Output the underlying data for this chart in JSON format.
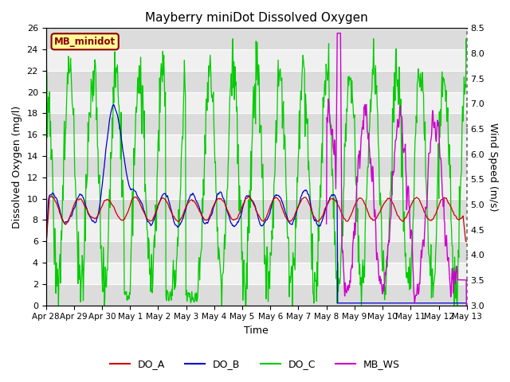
{
  "title": "Mayberry miniDot Dissolved Oxygen",
  "xlabel": "Time",
  "ylabel_left": "Dissolved Oxygen (mg/l)",
  "ylabel_right": "Wind Speed (m/s)",
  "ylim_left": [
    0,
    26
  ],
  "ylim_right": [
    3.0,
    8.5
  ],
  "yticks_left": [
    0,
    2,
    4,
    6,
    8,
    10,
    12,
    14,
    16,
    18,
    20,
    22,
    24,
    26
  ],
  "yticks_right": [
    3.0,
    3.5,
    4.0,
    4.5,
    5.0,
    5.5,
    6.0,
    6.5,
    7.0,
    7.5,
    8.0,
    8.5
  ],
  "x_start": 0,
  "x_end": 15.0,
  "xtick_positions": [
    0,
    1,
    2,
    3,
    4,
    5,
    6,
    7,
    8,
    9,
    10,
    11,
    12,
    13,
    14,
    15
  ],
  "xtick_labels": [
    "Apr 28",
    "Apr 29",
    "Apr 30",
    "May 1",
    "May 2",
    "May 3",
    "May 4",
    "May 5",
    "May 6",
    "May 7",
    "May 8",
    "May 9",
    "May 10",
    "May 11",
    "May 12",
    "May 13"
  ],
  "legend_box_text": "MB_minidot",
  "legend_box_bg": "#FFFF99",
  "legend_box_edge": "#8B0000",
  "legend_box_text_color": "#8B0000",
  "line_DO_A_color": "#CC0000",
  "line_DO_B_color": "#0000CC",
  "line_DO_C_color": "#00CC00",
  "line_MB_WS_color": "#CC00CC",
  "plot_bg_color": "#F0F0F0",
  "band_color": "#DCDCDC",
  "title_fontsize": 11,
  "axis_label_fontsize": 9,
  "tick_fontsize": 8
}
